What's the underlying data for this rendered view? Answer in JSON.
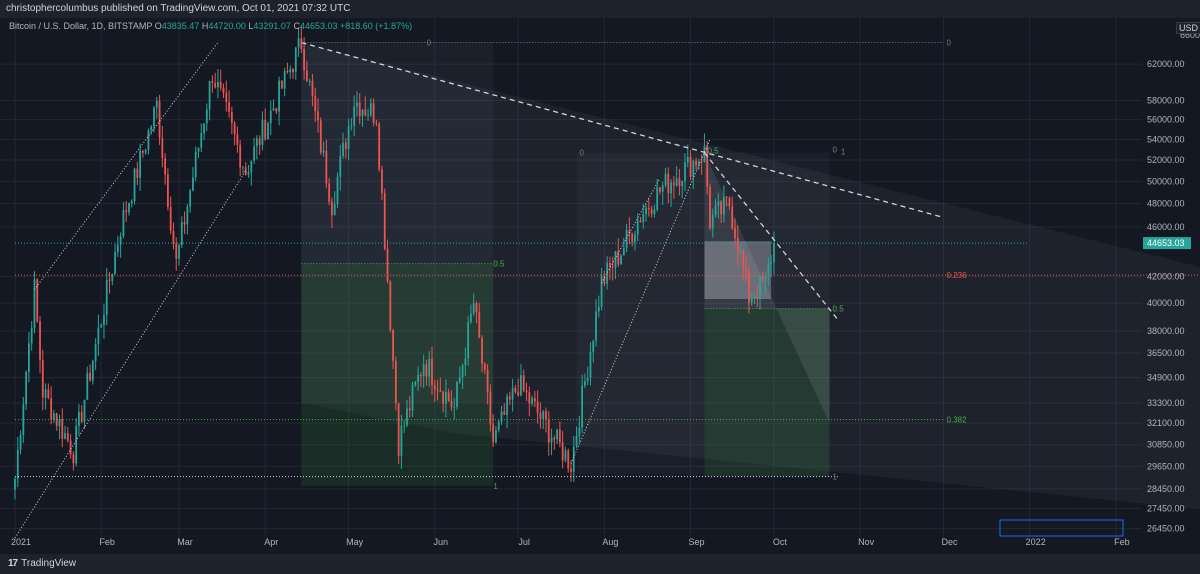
{
  "publish_line": "christophercolumbus published on TradingView.com, Oct 01, 2021 07:32 UTC",
  "brand": {
    "logo": "17",
    "name": "TradingView"
  },
  "legend": {
    "symbol": "Bitcoin / U.S. Dollar, 1D, BITSTAMP",
    "o_label": "O",
    "open": "43835.47",
    "h_label": "H",
    "high": "44720.00",
    "l_label": "L",
    "low": "43291.07",
    "c_label": "C",
    "close": "44653.03",
    "change": "+818.60 (+1.87%)"
  },
  "currency": "USD",
  "colors": {
    "up": "#26a69a",
    "down": "#ef5350",
    "background": "#141823",
    "grid": "#232733",
    "fib_green": "#4caf50",
    "fib_red": "#ef5350",
    "price_tag": "#26a69a"
  },
  "chart_data": {
    "type": "candlestick",
    "x_axis": {
      "labels": [
        "2021",
        "Feb",
        "Mar",
        "Apr",
        "May",
        "Jun",
        "Jul",
        "Aug",
        "Sep",
        "Oct",
        "Nov",
        "Dec",
        "2022",
        "Feb"
      ]
    },
    "y_axis": {
      "scale": "log",
      "ticks": [
        "62000.00",
        "58000.00",
        "56000.00",
        "54000.00",
        "52000.00",
        "50000.00",
        "48000.00",
        "46000.00",
        "42000.00",
        "40000.00",
        "38000.00",
        "36500.00",
        "34900.00",
        "33300.00",
        "32100.00",
        "30850.00",
        "29650.00",
        "28450.00",
        "27450.00",
        "26450.00"
      ],
      "range": [
        26000,
        66000
      ],
      "top_label": "66000.00"
    },
    "last_price": "44653.03",
    "grid": true,
    "price_anchors": [
      {
        "date": "2021-01-01",
        "price": 29000
      },
      {
        "date": "2021-01-08",
        "price": 41000
      },
      {
        "date": "2021-01-11",
        "price": 34000
      },
      {
        "date": "2021-01-22",
        "price": 30500
      },
      {
        "date": "2021-02-08",
        "price": 46000
      },
      {
        "date": "2021-02-21",
        "price": 57500
      },
      {
        "date": "2021-02-28",
        "price": 43000
      },
      {
        "date": "2021-03-13",
        "price": 61000
      },
      {
        "date": "2021-03-25",
        "price": 51000
      },
      {
        "date": "2021-04-14",
        "price": 64500
      },
      {
        "date": "2021-04-25",
        "price": 48000
      },
      {
        "date": "2021-05-03",
        "price": 58000
      },
      {
        "date": "2021-05-11",
        "price": 56500
      },
      {
        "date": "2021-05-19",
        "price": 31000
      },
      {
        "date": "2021-05-28",
        "price": 36000
      },
      {
        "date": "2021-06-08",
        "price": 33000
      },
      {
        "date": "2021-06-15",
        "price": 40000
      },
      {
        "date": "2021-06-22",
        "price": 31000
      },
      {
        "date": "2021-07-01",
        "price": 34500
      },
      {
        "date": "2021-07-20",
        "price": 29800
      },
      {
        "date": "2021-07-31",
        "price": 41500
      },
      {
        "date": "2021-08-07",
        "price": 44000
      },
      {
        "date": "2021-08-14",
        "price": 47000
      },
      {
        "date": "2021-08-22",
        "price": 49500
      },
      {
        "date": "2021-09-06",
        "price": 52700
      },
      {
        "date": "2021-09-08",
        "price": 46500
      },
      {
        "date": "2021-09-15",
        "price": 48000
      },
      {
        "date": "2021-09-22",
        "price": 40500
      },
      {
        "date": "2021-09-28",
        "price": 41500
      },
      {
        "date": "2021-10-01",
        "price": 44653
      }
    ],
    "annotations": [
      {
        "type": "fib_label",
        "text": "0",
        "date": "2021-05-28",
        "price": 64500
      },
      {
        "type": "fib_label",
        "text": "0",
        "date": "2021-12-01",
        "price": 64500
      },
      {
        "type": "fib_label",
        "text": "0.5",
        "date": "2021-06-21",
        "price": 43000
      },
      {
        "type": "fib_label",
        "text": "1",
        "date": "2021-06-21",
        "price": 28600
      },
      {
        "type": "fib_label",
        "text": "0",
        "date": "2021-07-22",
        "price": 52700
      },
      {
        "type": "fib_label",
        "text": "0.5",
        "date": "2021-09-06",
        "price": 52900
      },
      {
        "type": "fib_label",
        "text": "0",
        "date": "2021-10-21",
        "price": 53000
      },
      {
        "type": "fib_label",
        "text": "1",
        "date": "2021-10-24",
        "price": 52800
      },
      {
        "type": "fib_label",
        "text": "0.236",
        "date": "2021-12-01",
        "price": 42100
      },
      {
        "type": "fib_label",
        "text": "0.5",
        "date": "2021-10-21",
        "price": 39600
      },
      {
        "type": "fib_label",
        "text": "0.382",
        "date": "2021-12-01",
        "price": 32300
      },
      {
        "type": "fib_label",
        "text": "1",
        "date": "2021-10-21",
        "price": 29100
      }
    ]
  }
}
